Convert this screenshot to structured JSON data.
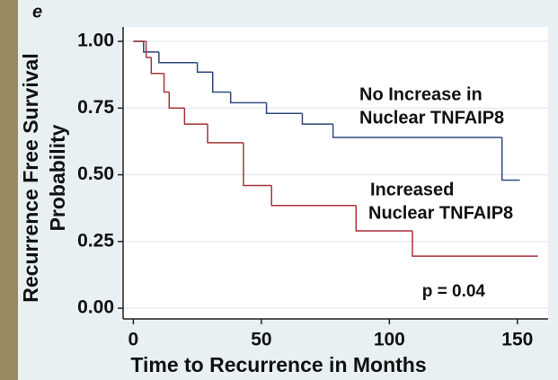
{
  "chart_data": {
    "type": "step",
    "panel_label": "e",
    "xlabel": "Time to Recurrence in Months",
    "ylabel": [
      "Recurrence Free Survival",
      "Probability"
    ],
    "xlim": [
      -4,
      162
    ],
    "ylim": [
      -0.04,
      1.054
    ],
    "xticks": [
      0,
      50,
      100,
      150
    ],
    "yticks": [
      {
        "value": 0,
        "label": "0.00"
      },
      {
        "value": 0.25,
        "label": "0.25"
      },
      {
        "value": 0.5,
        "label": "0.50"
      },
      {
        "value": 0.75,
        "label": "0.75"
      },
      {
        "value": 1,
        "label": "1.00"
      }
    ],
    "grid": true,
    "series": [
      {
        "name": [
          "No Increase in",
          "Nuclear TNFAIP8"
        ],
        "color": "#2e4a7d",
        "x": [
          0,
          4,
          10,
          25,
          31,
          38,
          52,
          66,
          78,
          144,
          151
        ],
        "values": [
          1,
          0.96,
          0.92,
          0.885,
          0.81,
          0.77,
          0.73,
          0.69,
          0.64,
          0.48,
          0.48
        ]
      },
      {
        "name": [
          "Increased",
          "Nuclear TNFAIP8"
        ],
        "color": "#a8343a",
        "x": [
          0,
          5,
          7,
          12,
          14,
          20,
          29,
          43,
          54,
          87,
          109,
          158
        ],
        "values": [
          1,
          0.94,
          0.88,
          0.81,
          0.75,
          0.69,
          0.62,
          0.46,
          0.385,
          0.29,
          0.195,
          0.195
        ]
      }
    ],
    "annotation": "p = 0.04"
  }
}
